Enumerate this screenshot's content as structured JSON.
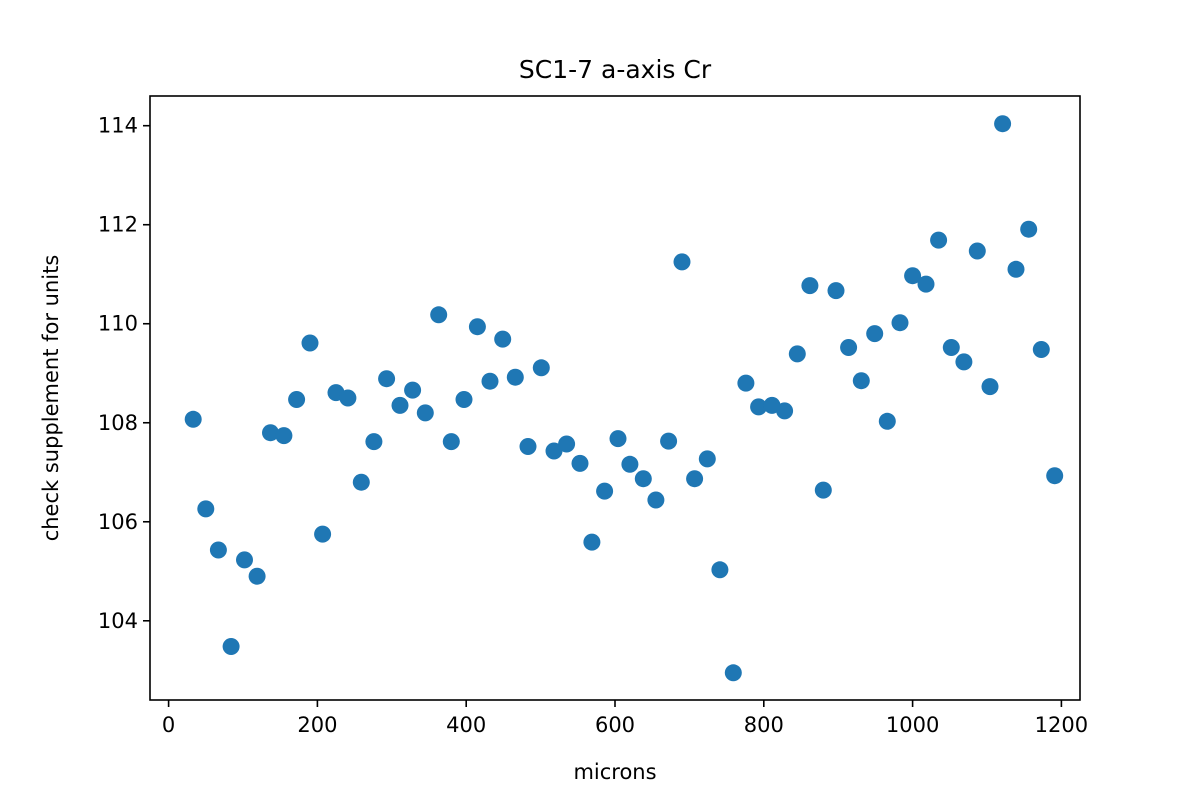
{
  "chart_data": {
    "type": "scatter",
    "title": "SC1-7 a-axis Cr",
    "xlabel": "microns",
    "ylabel": "check supplement for units",
    "xlim": [
      -25,
      1225
    ],
    "ylim": [
      102.4,
      114.6
    ],
    "x_ticks": [
      0,
      200,
      400,
      600,
      800,
      1000,
      1200
    ],
    "y_ticks": [
      104,
      106,
      108,
      110,
      112,
      114
    ],
    "grid": false,
    "marker_color": "#1f77b4",
    "series": [
      {
        "x": [
          33,
          50,
          67,
          84,
          102,
          119,
          137,
          155,
          172,
          190,
          207,
          225,
          241,
          259,
          276,
          293,
          311,
          328,
          345,
          363,
          380,
          397,
          415,
          432,
          449,
          466,
          483,
          501,
          518,
          535,
          553,
          569,
          586,
          604,
          620,
          638,
          655,
          672,
          690,
          707,
          724,
          741,
          759,
          776,
          793,
          811,
          828,
          845,
          862,
          880,
          897,
          914,
          931,
          949,
          966,
          983,
          1000,
          1018,
          1035,
          1052,
          1069,
          1087,
          1104,
          1121,
          1139,
          1156,
          1173,
          1191
        ],
        "y": [
          108.07,
          106.26,
          105.43,
          103.48,
          105.23,
          104.9,
          107.8,
          107.74,
          108.47,
          109.61,
          105.75,
          108.61,
          108.5,
          106.8,
          107.62,
          108.89,
          108.35,
          108.66,
          108.2,
          110.18,
          107.62,
          108.47,
          109.94,
          108.84,
          109.69,
          108.92,
          107.52,
          109.11,
          107.43,
          107.57,
          107.18,
          105.59,
          106.62,
          107.68,
          107.16,
          106.87,
          106.44,
          107.63,
          111.25,
          106.87,
          107.27,
          105.03,
          102.95,
          108.8,
          108.32,
          108.35,
          108.24,
          109.39,
          110.77,
          106.64,
          110.67,
          109.52,
          108.85,
          109.8,
          108.03,
          110.02,
          110.97,
          110.8,
          111.69,
          109.52,
          109.23,
          111.47,
          108.73,
          114.04,
          111.1,
          111.91,
          109.48,
          106.93
        ]
      }
    ]
  }
}
